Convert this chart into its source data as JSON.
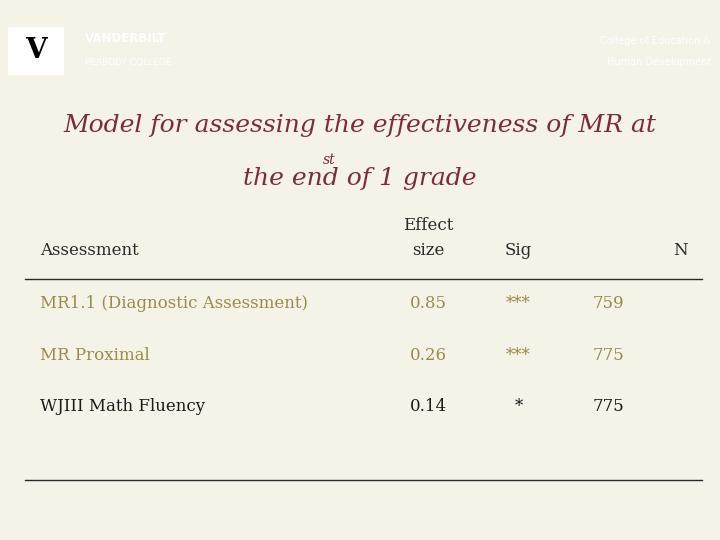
{
  "title_line1": "Model for assessing the effectiveness of MR at",
  "title_line2": "the end of 1",
  "title_line2_super": "st",
  "title_line2_end": " grade",
  "title_color": "#7B2D3E",
  "header_bg": "#1a1a1a",
  "gold_bar_color": "#9B8B4A",
  "bg_color": "#F5F2E8",
  "rows": [
    [
      "MR1.1 (Diagnostic Assessment)",
      "0.85",
      "***",
      "759"
    ],
    [
      "MR Proximal",
      "0.26",
      "***",
      "775"
    ],
    [
      "WJIII Math Fluency",
      "0.14",
      "*",
      "775"
    ]
  ],
  "row_colors": [
    "#9B8B4A",
    "#9B8B4A",
    "#1a1a1a"
  ],
  "vanderbilt_line1": "VANDERBILT",
  "vanderbilt_line2": "PEABODY COLLEGE",
  "college_line1": "College of Education &",
  "college_line2": "Human Development"
}
